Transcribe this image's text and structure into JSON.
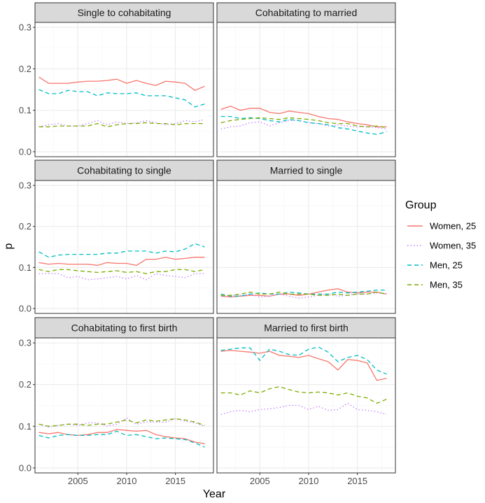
{
  "chart_data": {
    "type": "line",
    "layout": "facet-grid-3x2",
    "xlabel": "Year",
    "ylabel": "p",
    "xlim": [
      2000.6,
      2018.9
    ],
    "ylim": [
      -0.012,
      0.312
    ],
    "x_ticks": [
      2005,
      2010,
      2015
    ],
    "y_ticks": [
      0.0,
      0.1,
      0.2,
      0.3
    ],
    "y_tick_labels": [
      "0.0",
      "0.1",
      "0.2",
      "0.3"
    ],
    "x_tick_labels": [
      "2005",
      "2010",
      "2015"
    ],
    "legend": {
      "title": "Group",
      "position": "right",
      "entries": [
        {
          "name": "Women, 25",
          "color": "#F8766D",
          "dash": "solid"
        },
        {
          "name": "Women, 35",
          "color": "#C77CFF",
          "dash": "dotted"
        },
        {
          "name": "Men, 25",
          "color": "#00BFC4",
          "dash": "dashed"
        },
        {
          "name": "Men, 35",
          "color": "#7CAE00",
          "dash": "dashed"
        }
      ]
    },
    "years": [
      2001,
      2002,
      2003,
      2004,
      2005,
      2006,
      2007,
      2008,
      2009,
      2010,
      2011,
      2012,
      2013,
      2014,
      2015,
      2016,
      2017,
      2018
    ],
    "panels": [
      {
        "title": "Single to cohabitating",
        "series": [
          {
            "name": "Women, 25",
            "values": [
              0.18,
              0.165,
              0.165,
              0.165,
              0.168,
              0.17,
              0.17,
              0.172,
              0.175,
              0.165,
              0.172,
              0.165,
              0.16,
              0.17,
              0.168,
              0.165,
              0.148,
              0.158
            ]
          },
          {
            "name": "Women, 35",
            "values": [
              0.06,
              0.065,
              0.068,
              0.062,
              0.062,
              0.068,
              0.075,
              0.065,
              0.072,
              0.068,
              0.07,
              0.075,
              0.07,
              0.065,
              0.068,
              0.075,
              0.072,
              0.078
            ]
          },
          {
            "name": "Men, 25",
            "values": [
              0.15,
              0.14,
              0.14,
              0.148,
              0.145,
              0.145,
              0.135,
              0.142,
              0.14,
              0.14,
              0.142,
              0.135,
              0.135,
              0.135,
              0.13,
              0.125,
              0.108,
              0.115
            ]
          },
          {
            "name": "Men, 35",
            "values": [
              0.06,
              0.06,
              0.062,
              0.062,
              0.062,
              0.062,
              0.068,
              0.06,
              0.065,
              0.068,
              0.068,
              0.07,
              0.068,
              0.068,
              0.065,
              0.068,
              0.068,
              0.068
            ]
          }
        ]
      },
      {
        "title": "Cohabitating to married",
        "series": [
          {
            "name": "Women, 25",
            "values": [
              0.102,
              0.11,
              0.1,
              0.105,
              0.105,
              0.095,
              0.092,
              0.098,
              0.095,
              0.092,
              0.085,
              0.08,
              0.078,
              0.072,
              0.068,
              0.065,
              0.06,
              0.06
            ]
          },
          {
            "name": "Women, 35",
            "values": [
              0.055,
              0.06,
              0.062,
              0.07,
              0.072,
              0.062,
              0.07,
              0.075,
              0.075,
              0.07,
              0.068,
              0.062,
              0.065,
              0.062,
              0.06,
              0.06,
              0.058,
              0.055
            ]
          },
          {
            "name": "Men, 25",
            "values": [
              0.085,
              0.085,
              0.08,
              0.082,
              0.08,
              0.075,
              0.072,
              0.078,
              0.075,
              0.07,
              0.068,
              0.065,
              0.058,
              0.055,
              0.05,
              0.045,
              0.042,
              0.048
            ]
          },
          {
            "name": "Men, 35",
            "values": [
              0.07,
              0.075,
              0.078,
              0.08,
              0.082,
              0.08,
              0.078,
              0.082,
              0.08,
              0.078,
              0.075,
              0.07,
              0.068,
              0.068,
              0.062,
              0.06,
              0.062,
              0.058
            ]
          }
        ]
      },
      {
        "title": "Cohabitating to single",
        "series": [
          {
            "name": "Women, 25",
            "values": [
              0.112,
              0.108,
              0.11,
              0.108,
              0.108,
              0.108,
              0.105,
              0.112,
              0.11,
              0.11,
              0.105,
              0.12,
              0.12,
              0.125,
              0.12,
              0.122,
              0.125,
              0.125
            ]
          },
          {
            "name": "Women, 35",
            "values": [
              0.085,
              0.085,
              0.085,
              0.075,
              0.078,
              0.07,
              0.072,
              0.075,
              0.078,
              0.072,
              0.08,
              0.07,
              0.085,
              0.08,
              0.078,
              0.075,
              0.085,
              0.085
            ]
          },
          {
            "name": "Men, 25",
            "values": [
              0.138,
              0.125,
              0.13,
              0.132,
              0.132,
              0.132,
              0.132,
              0.135,
              0.135,
              0.14,
              0.14,
              0.14,
              0.135,
              0.14,
              0.138,
              0.145,
              0.158,
              0.15
            ]
          },
          {
            "name": "Men, 35",
            "values": [
              0.095,
              0.09,
              0.095,
              0.095,
              0.092,
              0.09,
              0.088,
              0.09,
              0.092,
              0.088,
              0.09,
              0.085,
              0.09,
              0.09,
              0.095,
              0.095,
              0.09,
              0.095
            ]
          }
        ]
      },
      {
        "title": "Married to single",
        "series": [
          {
            "name": "Women, 25",
            "values": [
              0.03,
              0.028,
              0.03,
              0.032,
              0.032,
              0.03,
              0.035,
              0.035,
              0.032,
              0.035,
              0.04,
              0.045,
              0.048,
              0.04,
              0.038,
              0.04,
              0.04,
              0.035
            ]
          },
          {
            "name": "Women, 35",
            "values": [
              0.03,
              0.032,
              0.032,
              0.035,
              0.028,
              0.03,
              0.035,
              0.03,
              0.025,
              0.028,
              0.032,
              0.035,
              0.03,
              0.032,
              0.035,
              0.035,
              0.038,
              0.035
            ]
          },
          {
            "name": "Men, 25",
            "values": [
              0.035,
              0.03,
              0.03,
              0.035,
              0.038,
              0.035,
              0.035,
              0.04,
              0.038,
              0.035,
              0.035,
              0.035,
              0.04,
              0.038,
              0.04,
              0.042,
              0.045,
              0.045
            ]
          },
          {
            "name": "Men, 35",
            "values": [
              0.032,
              0.032,
              0.035,
              0.04,
              0.035,
              0.035,
              0.04,
              0.035,
              0.035,
              0.035,
              0.032,
              0.032,
              0.035,
              0.032,
              0.035,
              0.035,
              0.04,
              0.035
            ]
          }
        ]
      },
      {
        "title": "Cohabitating to first birth",
        "series": [
          {
            "name": "Women, 25",
            "values": [
              0.085,
              0.082,
              0.085,
              0.08,
              0.078,
              0.08,
              0.085,
              0.085,
              0.092,
              0.09,
              0.088,
              0.09,
              0.08,
              0.075,
              0.072,
              0.07,
              0.062,
              0.058
            ]
          },
          {
            "name": "Women, 35",
            "values": [
              0.105,
              0.098,
              0.102,
              0.105,
              0.102,
              0.108,
              0.108,
              0.1,
              0.105,
              0.12,
              0.105,
              0.11,
              0.11,
              0.11,
              0.118,
              0.112,
              0.108,
              0.1
            ]
          },
          {
            "name": "Men, 25",
            "values": [
              0.078,
              0.072,
              0.078,
              0.08,
              0.078,
              0.078,
              0.08,
              0.08,
              0.088,
              0.078,
              0.08,
              0.075,
              0.07,
              0.072,
              0.07,
              0.068,
              0.06,
              0.05
            ]
          },
          {
            "name": "Men, 35",
            "values": [
              0.105,
              0.1,
              0.102,
              0.105,
              0.105,
              0.102,
              0.105,
              0.105,
              0.11,
              0.115,
              0.108,
              0.115,
              0.112,
              0.115,
              0.118,
              0.115,
              0.11,
              0.102
            ]
          }
        ]
      },
      {
        "title": "Married to first birth",
        "series": [
          {
            "name": "Women, 25",
            "values": [
              0.28,
              0.282,
              0.28,
              0.278,
              0.275,
              0.28,
              0.27,
              0.268,
              0.265,
              0.27,
              0.262,
              0.255,
              0.235,
              0.26,
              0.258,
              0.252,
              0.21,
              0.215
            ]
          },
          {
            "name": "Women, 35",
            "values": [
              0.128,
              0.135,
              0.138,
              0.135,
              0.14,
              0.142,
              0.145,
              0.15,
              0.15,
              0.14,
              0.148,
              0.138,
              0.14,
              0.155,
              0.14,
              0.138,
              0.135,
              0.128
            ]
          },
          {
            "name": "Men, 25",
            "values": [
              0.282,
              0.285,
              0.288,
              0.288,
              0.258,
              0.285,
              0.28,
              0.272,
              0.27,
              0.285,
              0.29,
              0.278,
              0.255,
              0.265,
              0.27,
              0.26,
              0.235,
              0.225
            ]
          },
          {
            "name": "Men, 35",
            "values": [
              0.18,
              0.18,
              0.175,
              0.185,
              0.18,
              0.19,
              0.195,
              0.188,
              0.182,
              0.18,
              0.182,
              0.18,
              0.175,
              0.18,
              0.172,
              0.168,
              0.155,
              0.165
            ]
          }
        ]
      }
    ]
  }
}
